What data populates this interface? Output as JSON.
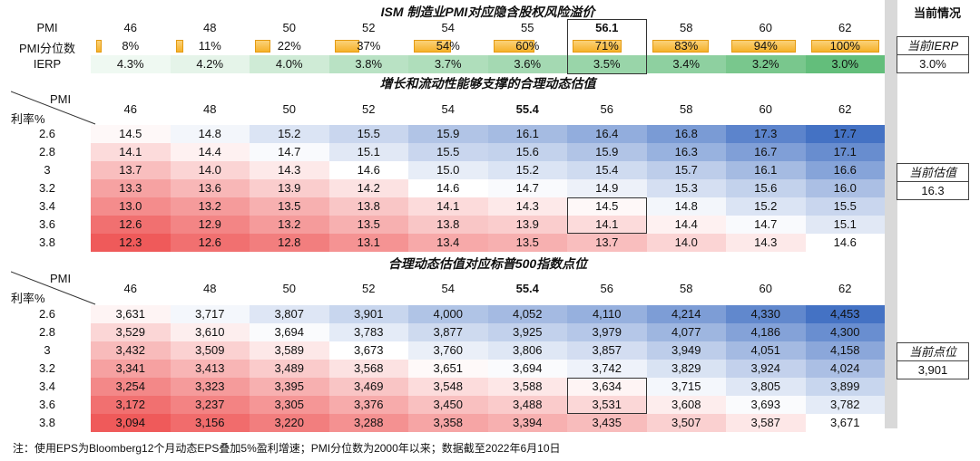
{
  "side": {
    "header": "当前情况",
    "ierp_title": "当前IERP",
    "ierp_value": "3.0%",
    "val_title": "当前估值",
    "val_value": "16.3",
    "pts_title": "当前点位",
    "pts_value": "3,901"
  },
  "section1": {
    "title": "ISM 制造业PMI对应隐含股权风险溢价",
    "pmi_label": "PMI",
    "pct_label": "PMI分位数",
    "ierp_label": "IERP",
    "pmi": [
      "46",
      "48",
      "50",
      "52",
      "54",
      "55",
      "56.1",
      "58",
      "60",
      "62"
    ],
    "pct_text": [
      "8%",
      "11%",
      "22%",
      "37%",
      "54%",
      "60%",
      "71%",
      "83%",
      "94%",
      "100%"
    ],
    "pct_values": [
      8,
      11,
      22,
      37,
      54,
      60,
      71,
      83,
      94,
      100
    ],
    "ierp": [
      "4.3%",
      "4.2%",
      "4.0%",
      "3.8%",
      "3.7%",
      "3.6%",
      "3.5%",
      "3.4%",
      "3.2%",
      "3.0%"
    ]
  },
  "section2": {
    "title": "增长和流动性能够支撑的合理动态估值",
    "corner_pmi": "PMI",
    "corner_rate": "利率%",
    "pmi": [
      "46",
      "48",
      "50",
      "52",
      "54",
      "55.4",
      "56",
      "58",
      "60",
      "62"
    ],
    "rates": [
      "2.6",
      "2.8",
      "3",
      "3.2",
      "3.4",
      "3.6",
      "3.8"
    ],
    "rows": [
      [
        "14.5",
        "14.8",
        "15.2",
        "15.5",
        "15.9",
        "16.1",
        "16.4",
        "16.8",
        "17.3",
        "17.7"
      ],
      [
        "14.1",
        "14.4",
        "14.7",
        "15.1",
        "15.5",
        "15.6",
        "15.9",
        "16.3",
        "16.7",
        "17.1"
      ],
      [
        "13.7",
        "14.0",
        "14.3",
        "14.6",
        "15.0",
        "15.2",
        "15.4",
        "15.7",
        "16.1",
        "16.6"
      ],
      [
        "13.3",
        "13.6",
        "13.9",
        "14.2",
        "14.6",
        "14.7",
        "14.9",
        "15.3",
        "15.6",
        "16.0"
      ],
      [
        "13.0",
        "13.2",
        "13.5",
        "13.8",
        "14.1",
        "14.3",
        "14.5",
        "14.8",
        "15.2",
        "15.5"
      ],
      [
        "12.6",
        "12.9",
        "13.2",
        "13.5",
        "13.8",
        "13.9",
        "14.1",
        "14.4",
        "14.7",
        "15.1"
      ],
      [
        "12.3",
        "12.6",
        "12.8",
        "13.1",
        "13.4",
        "13.5",
        "13.7",
        "14.0",
        "14.3",
        "14.6"
      ]
    ]
  },
  "section3": {
    "title": "合理动态估值对应标普500指数点位",
    "corner_pmi": "PMI",
    "corner_rate": "利率%",
    "pmi": [
      "46",
      "48",
      "50",
      "52",
      "54",
      "55.4",
      "56",
      "58",
      "60",
      "62"
    ],
    "rates": [
      "2.6",
      "2.8",
      "3",
      "3.2",
      "3.4",
      "3.6",
      "3.8"
    ],
    "rows": [
      [
        "3,631",
        "3,717",
        "3,807",
        "3,901",
        "4,000",
        "4,052",
        "4,110",
        "4,214",
        "4,330",
        "4,453"
      ],
      [
        "3,529",
        "3,610",
        "3,694",
        "3,783",
        "3,877",
        "3,925",
        "3,979",
        "4,077",
        "4,186",
        "4,300"
      ],
      [
        "3,432",
        "3,509",
        "3,589",
        "3,673",
        "3,760",
        "3,806",
        "3,857",
        "3,949",
        "4,051",
        "4,158"
      ],
      [
        "3,341",
        "3,413",
        "3,489",
        "3,568",
        "3,651",
        "3,694",
        "3,742",
        "3,829",
        "3,924",
        "4,024"
      ],
      [
        "3,254",
        "3,323",
        "3,395",
        "3,469",
        "3,548",
        "3,588",
        "3,634",
        "3,715",
        "3,805",
        "3,899"
      ],
      [
        "3,172",
        "3,237",
        "3,305",
        "3,376",
        "3,450",
        "3,488",
        "3,531",
        "3,608",
        "3,693",
        "3,782"
      ],
      [
        "3,094",
        "3,156",
        "3,220",
        "3,288",
        "3,358",
        "3,394",
        "3,435",
        "3,507",
        "3,587",
        "3,671"
      ]
    ]
  },
  "note": "注：使用EPS为Bloomberg12个月动态EPS叠加5%盈利增速；PMI分位数为2000年以来；数据截至2022年6月10日",
  "colors": {
    "red": "#ef5a5a",
    "blue": "#4472c4",
    "green": "#63be7b",
    "bar": "#f6b129"
  },
  "chart_data": [
    {
      "type": "table",
      "title": "ISM 制造业PMI对应隐含股权风险溢价",
      "x": [
        46,
        48,
        50,
        52,
        54,
        55,
        56.1,
        58,
        60,
        62
      ],
      "series": [
        {
          "name": "PMI分位数",
          "values": [
            8,
            11,
            22,
            37,
            54,
            60,
            71,
            83,
            94,
            100
          ]
        },
        {
          "name": "IERP",
          "values": [
            4.3,
            4.2,
            4.0,
            3.8,
            3.7,
            3.6,
            3.5,
            3.4,
            3.2,
            3.0
          ]
        }
      ]
    },
    {
      "type": "heatmap",
      "title": "增长和流动性能够支撑的合理动态估值",
      "x": [
        46,
        48,
        50,
        52,
        54,
        55.4,
        56,
        58,
        60,
        62
      ],
      "y": [
        2.6,
        2.8,
        3,
        3.2,
        3.4,
        3.6,
        3.8
      ],
      "values": [
        [
          14.5,
          14.8,
          15.2,
          15.5,
          15.9,
          16.1,
          16.4,
          16.8,
          17.3,
          17.7
        ],
        [
          14.1,
          14.4,
          14.7,
          15.1,
          15.5,
          15.6,
          15.9,
          16.3,
          16.7,
          17.1
        ],
        [
          13.7,
          14.0,
          14.3,
          14.6,
          15.0,
          15.2,
          15.4,
          15.7,
          16.1,
          16.6
        ],
        [
          13.3,
          13.6,
          13.9,
          14.2,
          14.6,
          14.7,
          14.9,
          15.3,
          15.6,
          16.0
        ],
        [
          13.0,
          13.2,
          13.5,
          13.8,
          14.1,
          14.3,
          14.5,
          14.8,
          15.2,
          15.5
        ],
        [
          12.6,
          12.9,
          13.2,
          13.5,
          13.8,
          13.9,
          14.1,
          14.4,
          14.7,
          15.1
        ],
        [
          12.3,
          12.6,
          12.8,
          13.1,
          13.4,
          13.5,
          13.7,
          14.0,
          14.3,
          14.6
        ]
      ]
    },
    {
      "type": "heatmap",
      "title": "合理动态估值对应标普500指数点位",
      "x": [
        46,
        48,
        50,
        52,
        54,
        55.4,
        56,
        58,
        60,
        62
      ],
      "y": [
        2.6,
        2.8,
        3,
        3.2,
        3.4,
        3.6,
        3.8
      ],
      "values": [
        [
          3631,
          3717,
          3807,
          3901,
          4000,
          4052,
          4110,
          4214,
          4330,
          4453
        ],
        [
          3529,
          3610,
          3694,
          3783,
          3877,
          3925,
          3979,
          4077,
          4186,
          4300
        ],
        [
          3432,
          3509,
          3589,
          3673,
          3760,
          3806,
          3857,
          3949,
          4051,
          4158
        ],
        [
          3341,
          3413,
          3489,
          3568,
          3651,
          3694,
          3742,
          3829,
          3924,
          4024
        ],
        [
          3254,
          3323,
          3395,
          3469,
          3548,
          3588,
          3634,
          3715,
          3805,
          3899
        ],
        [
          3172,
          3237,
          3305,
          3376,
          3450,
          3488,
          3531,
          3608,
          3693,
          3782
        ],
        [
          3094,
          3156,
          3220,
          3288,
          3358,
          3394,
          3435,
          3507,
          3587,
          3671
        ]
      ]
    }
  ]
}
